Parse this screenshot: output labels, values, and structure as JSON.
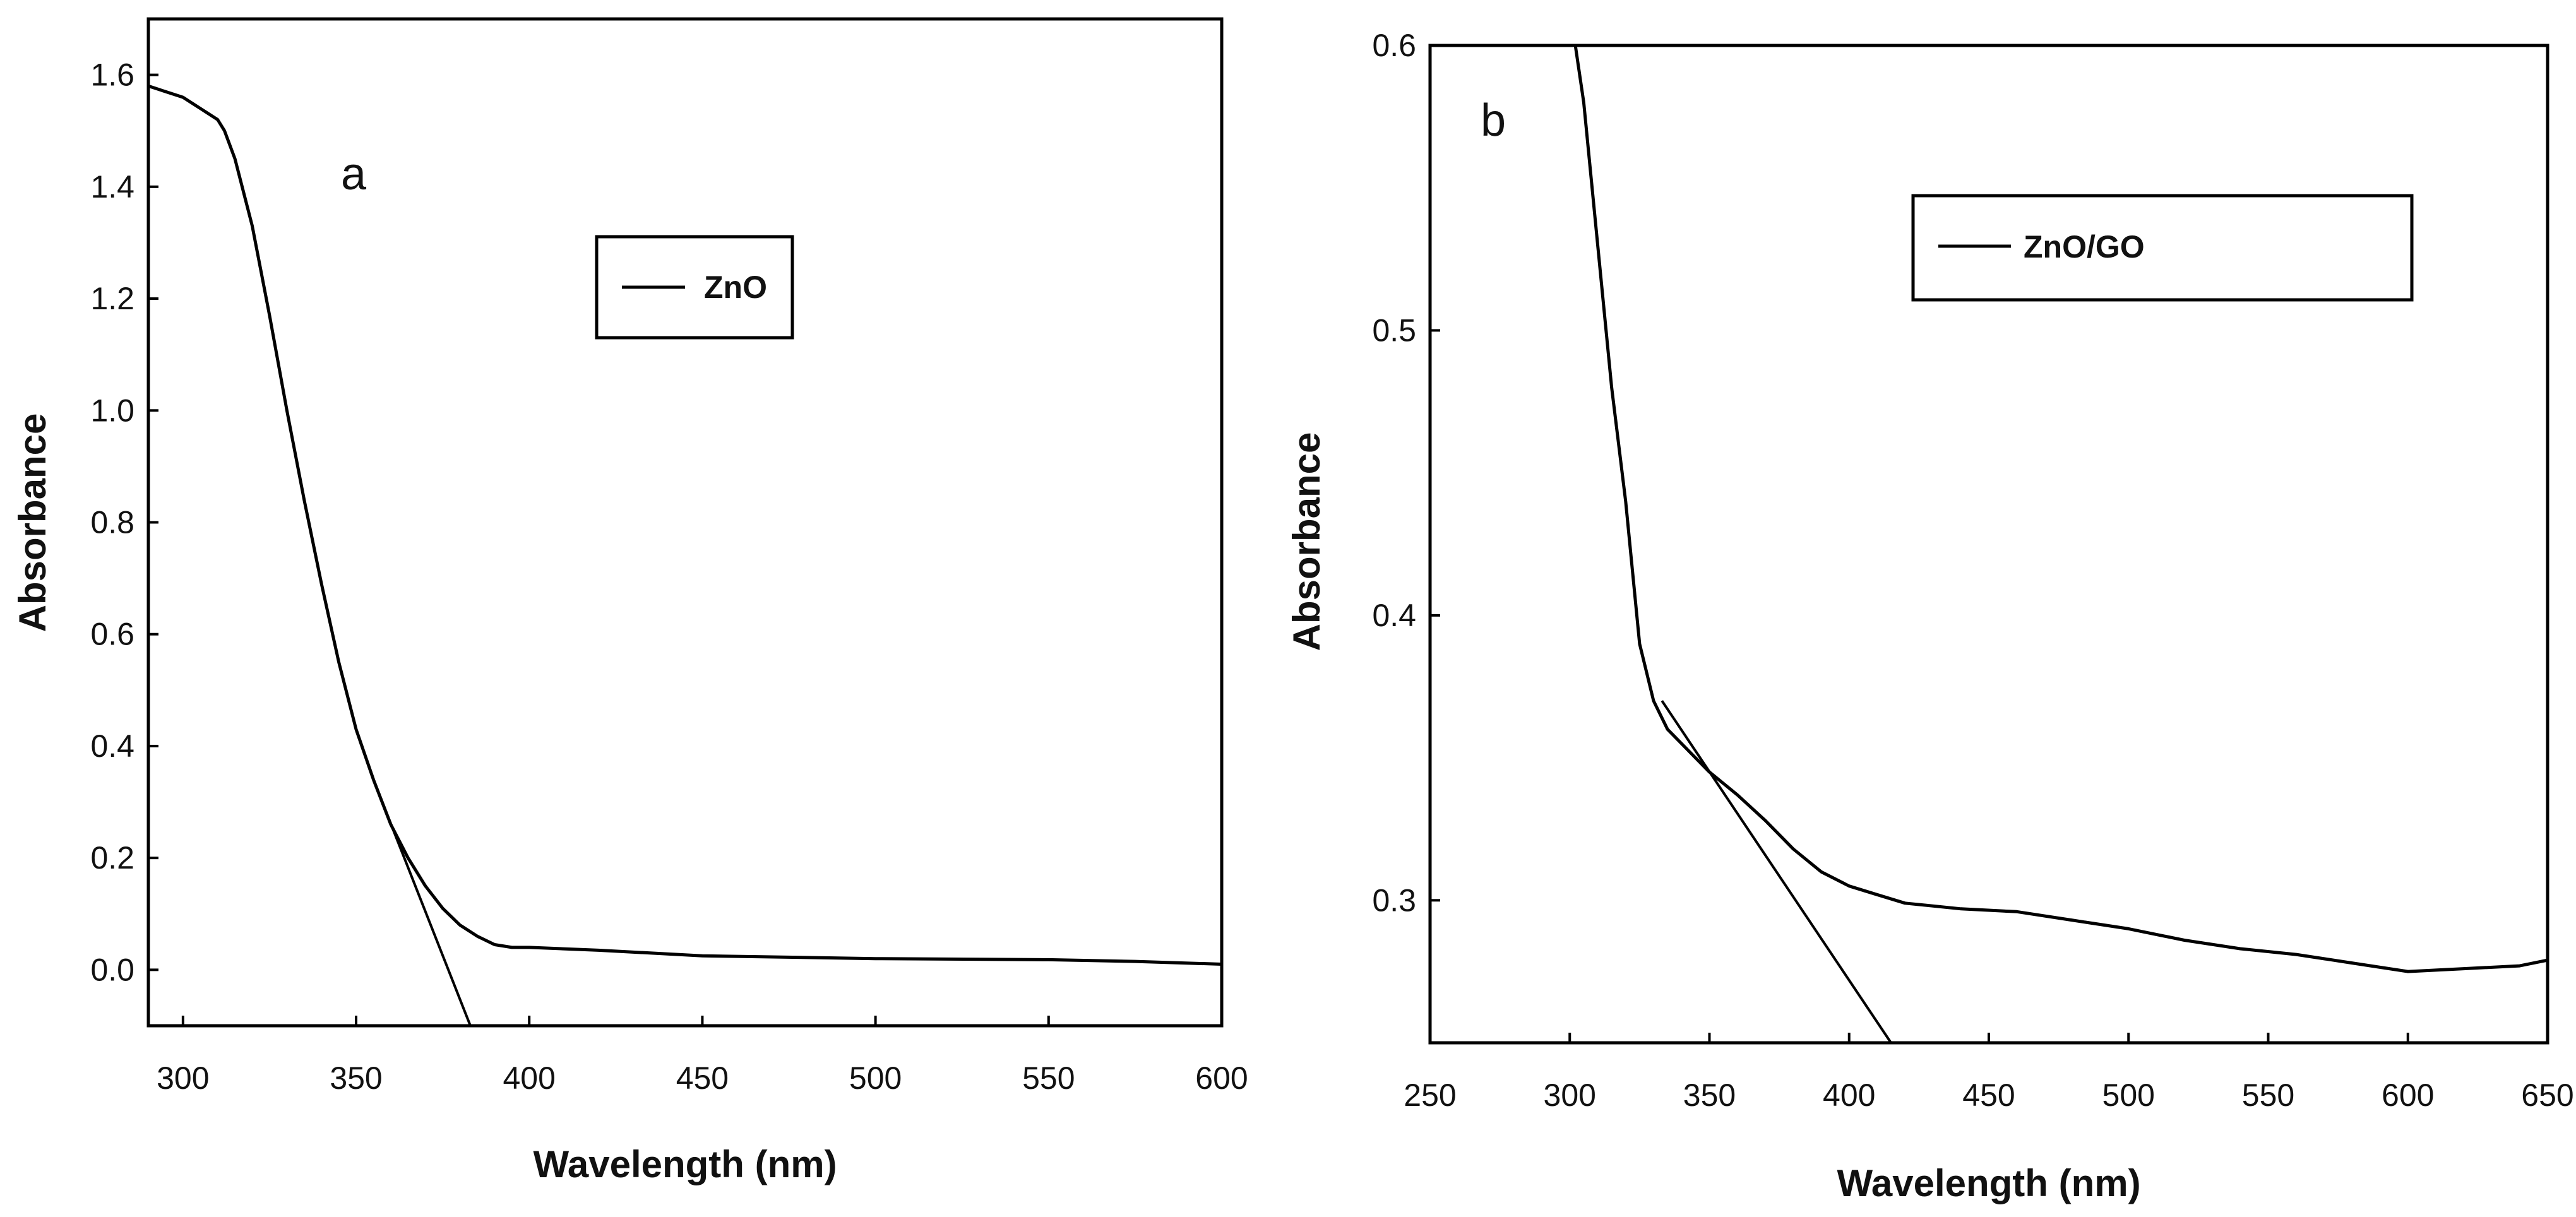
{
  "chart_data": [
    {
      "type": "line",
      "panel_label": "a",
      "xlabel": "Wavelength (nm)",
      "ylabel": "Absorbance",
      "xlim": [
        290,
        600
      ],
      "ylim": [
        -0.1,
        1.7
      ],
      "xticks": [
        300,
        350,
        400,
        450,
        500,
        550,
        600
      ],
      "xtick_labels": [
        "300",
        "350",
        "400",
        "450",
        "500",
        "550",
        "600"
      ],
      "yticks": [
        0.0,
        0.2,
        0.4,
        0.6,
        0.8,
        1.0,
        1.2,
        1.4,
        1.6
      ],
      "ytick_labels": [
        "0.0",
        "0.2",
        "0.4",
        "0.6",
        "0.8",
        "1.0",
        "1.2",
        "1.4",
        "1.6"
      ],
      "legend": "top-center",
      "series": [
        {
          "name": "ZnO",
          "x": [
            290,
            300,
            305,
            310,
            312,
            315,
            320,
            325,
            330,
            335,
            340,
            345,
            350,
            355,
            360,
            365,
            370,
            375,
            380,
            385,
            390,
            395,
            400,
            420,
            450,
            500,
            550,
            575,
            600
          ],
          "y": [
            1.58,
            1.56,
            1.54,
            1.52,
            1.5,
            1.45,
            1.33,
            1.17,
            1.0,
            0.84,
            0.69,
            0.55,
            0.43,
            0.34,
            0.26,
            0.2,
            0.15,
            0.11,
            0.08,
            0.06,
            0.045,
            0.04,
            0.04,
            0.035,
            0.025,
            0.02,
            0.018,
            0.015,
            0.01
          ]
        },
        {
          "name": "tangent",
          "show_in_legend": false,
          "x": [
            355,
            383
          ],
          "y": [
            0.34,
            -0.1
          ]
        }
      ]
    },
    {
      "type": "line",
      "panel_label": "b",
      "xlabel": "Wavelength (nm)",
      "ylabel": "Absorbance",
      "xlim": [
        250,
        650
      ],
      "ylim": [
        0.25,
        0.6
      ],
      "xticks": [
        250,
        300,
        350,
        400,
        450,
        500,
        550,
        600,
        650
      ],
      "xtick_labels": [
        "250",
        "300",
        "350",
        "400",
        "450",
        "500",
        "550",
        "600",
        "650"
      ],
      "yticks": [
        0.3,
        0.4,
        0.5,
        0.6
      ],
      "ytick_labels": [
        "0.3",
        "0.4",
        "0.5",
        "0.6"
      ],
      "legend": "top-right",
      "series": [
        {
          "name": "ZnO/GO",
          "x": [
            302,
            305,
            310,
            315,
            320,
            325,
            330,
            335,
            340,
            350,
            360,
            370,
            380,
            390,
            400,
            410,
            420,
            440,
            460,
            480,
            500,
            520,
            540,
            560,
            580,
            600,
            620,
            640,
            650
          ],
          "y": [
            0.6,
            0.58,
            0.53,
            0.48,
            0.44,
            0.39,
            0.37,
            0.36,
            0.355,
            0.345,
            0.337,
            0.328,
            0.318,
            0.31,
            0.305,
            0.302,
            0.299,
            0.297,
            0.296,
            0.293,
            0.29,
            0.286,
            0.283,
            0.281,
            0.278,
            0.275,
            0.276,
            0.277,
            0.279
          ]
        },
        {
          "name": "tangent",
          "show_in_legend": false,
          "x": [
            333,
            415
          ],
          "y": [
            0.37,
            0.25
          ]
        }
      ]
    }
  ]
}
